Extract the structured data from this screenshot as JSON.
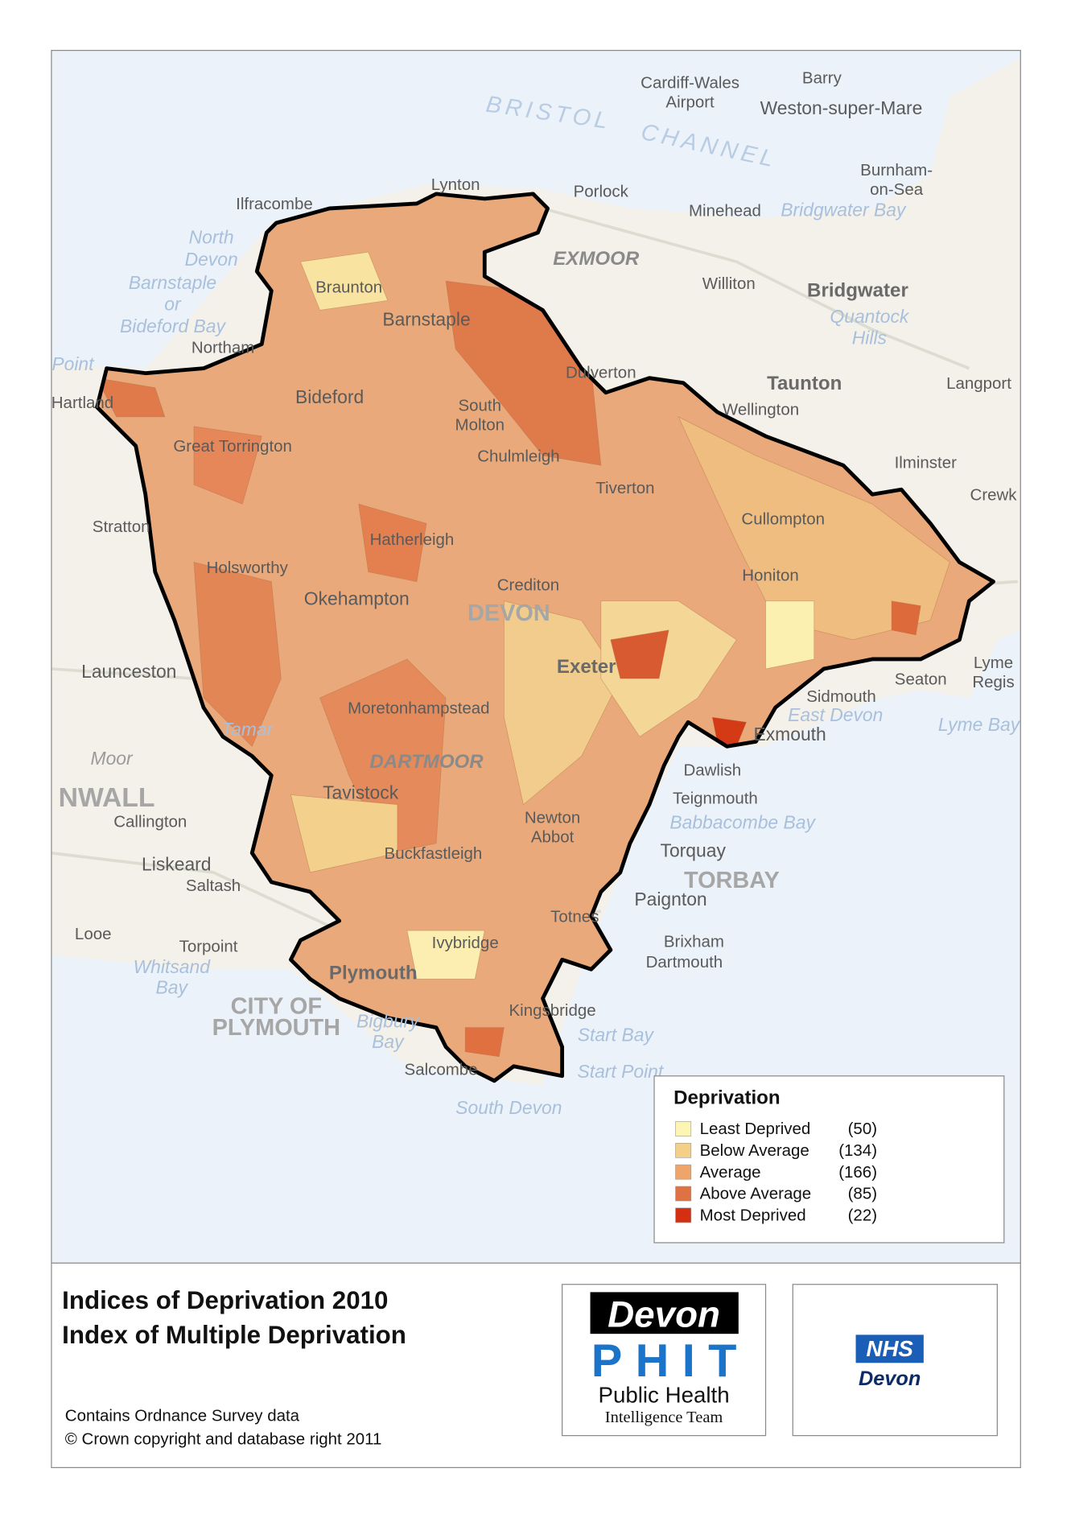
{
  "map": {
    "places": [
      "Cardiff-Wales",
      "Airport",
      "Barry",
      "Weston-super-Mare",
      "BRISTOL",
      "CHANNEL",
      "Lynton",
      "Porlock",
      "Ilfracombe",
      "Minehead",
      "Bridgwater Bay",
      "Burnham-",
      "on-Sea",
      "North",
      "Devon",
      "Barnstaple",
      "or",
      "Bideford Bay",
      "EXMOOR",
      "Williton",
      "Bridgwater",
      "Quantock",
      "Hills",
      "Braunton",
      "Barnstaple",
      "Northam",
      "Dulverton",
      "Taunton",
      "Langport",
      "Point",
      "Hartland",
      "Bideford",
      "South",
      "Molton",
      "Wellington",
      "Great Torrington",
      "Chulmleigh",
      "Ilminster",
      "Tiverton",
      "Crewk",
      "Stratton",
      "Cullompton",
      "Hatherleigh",
      "Holsworthy",
      "Crediton",
      "Honiton",
      "Okehampton",
      "DEVON",
      "Launceston",
      "Exeter",
      "Seaton",
      "Lyme",
      "Regis",
      "Sidmouth",
      "East Devon",
      "Lyme Bay",
      "Moretonhampstead",
      "Tamar",
      "Exmouth",
      "Moor",
      "DARTMOOR",
      "Dawlish",
      "Tavistock",
      "Teignmouth",
      "NWALL",
      "Callington",
      "Newton",
      "Abbot",
      "Babbacombe Bay",
      "Torquay",
      "Buckfastleigh",
      "Liskeard",
      "TORBAY",
      "Saltash",
      "Paignton",
      "Totnes",
      "Looe",
      "Torpoint",
      "Ivybridge",
      "Brixham",
      "Dartmouth",
      "Plymouth",
      "Whitsand",
      "Bay",
      "CITY OF",
      "PLYMOUTH",
      "Bigbury",
      "Bay",
      "Kingsbridge",
      "Start Bay",
      "Salcombe",
      "Start Point",
      "South Devon"
    ],
    "legend": {
      "title": "Deprivation",
      "items": [
        {
          "label": "Least Deprived",
          "count": "(50)",
          "color": "#fdf5b4"
        },
        {
          "label": "Below Average",
          "count": "(134)",
          "color": "#f4cf88"
        },
        {
          "label": "Average",
          "count": "(166)",
          "color": "#eda56c"
        },
        {
          "label": "Above Average",
          "count": "(85)",
          "color": "#df7242"
        },
        {
          "label": "Most Deprived",
          "count": "(22)",
          "color": "#d42f10"
        }
      ]
    }
  },
  "footer": {
    "title": [
      "Indices of Deprivation 2010",
      "Index of Multiple Deprivation"
    ],
    "credit": [
      "Contains Ordnance Survey data",
      "© Crown copyright and database right 2011"
    ],
    "phit_logo": {
      "name": "Devon",
      "acronym": "PHIT",
      "line1": "Public Health",
      "line2": "Intelligence Team"
    },
    "nhs_logo": {
      "name": "NHS",
      "area": "Devon"
    }
  }
}
